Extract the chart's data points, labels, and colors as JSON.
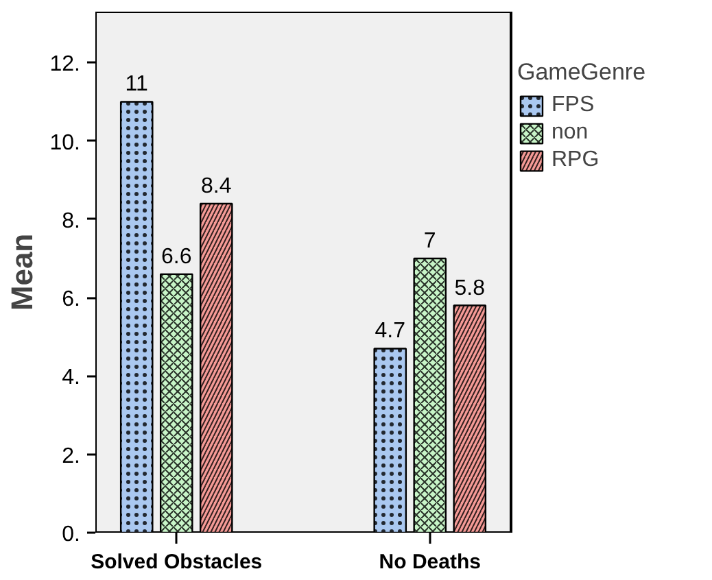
{
  "chart_data": {
    "type": "bar",
    "ylabel": "Mean",
    "legend_title": "GameGenre",
    "categories": [
      "Solved Obstacles",
      "No Deaths"
    ],
    "series": [
      {
        "name": "FPS",
        "color": "#aac8f0",
        "values": [
          11,
          4.7
        ]
      },
      {
        "name": "non",
        "color": "#c8f5c8",
        "values": [
          6.6,
          7
        ]
      },
      {
        "name": "RPG",
        "color": "#f59a96",
        "values": [
          8.4,
          5.8
        ]
      }
    ],
    "ylim": [
      0,
      13.3
    ],
    "yticks": [
      {
        "value": 0,
        "label": "0."
      },
      {
        "value": 2,
        "label": "2."
      },
      {
        "value": 4,
        "label": "4."
      },
      {
        "value": 6,
        "label": "6."
      },
      {
        "value": 8,
        "label": "8."
      },
      {
        "value": 10,
        "label": "10."
      },
      {
        "value": 12,
        "label": "12."
      }
    ],
    "data_labels": true,
    "grid": false,
    "legend": "right"
  }
}
